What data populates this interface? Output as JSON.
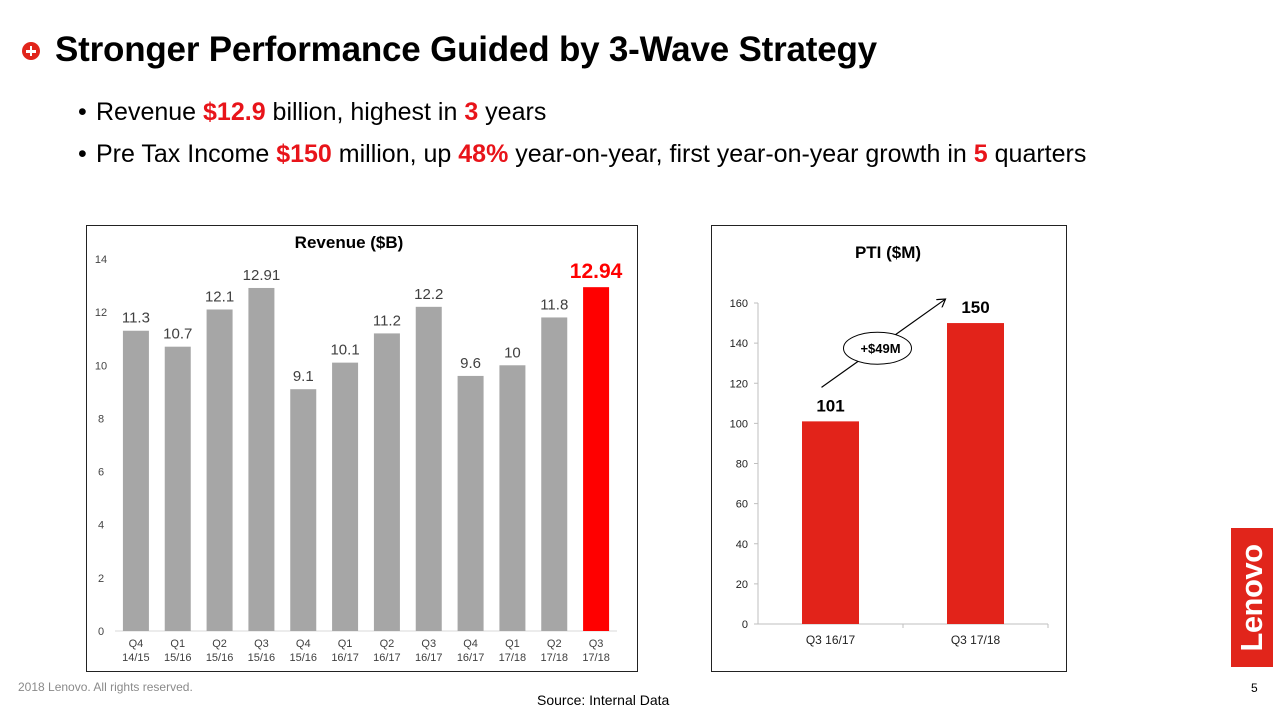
{
  "slide": {
    "title": "Stronger Performance Guided by 3-Wave Strategy",
    "bullets": [
      {
        "parts": [
          {
            "text": "Revenue ",
            "hl": false
          },
          {
            "text": "$12.9",
            "hl": true
          },
          {
            "text": " billion, highest in ",
            "hl": false
          },
          {
            "text": "3",
            "hl": true
          },
          {
            "text": " years",
            "hl": false
          }
        ]
      },
      {
        "parts": [
          {
            "text": "Pre Tax Income ",
            "hl": false
          },
          {
            "text": "$150",
            "hl": true
          },
          {
            "text": " million, up ",
            "hl": false
          },
          {
            "text": "48%",
            "hl": true
          },
          {
            "text": " year-on-year, first year-on-year growth in ",
            "hl": false
          },
          {
            "text": "5",
            "hl": true
          },
          {
            "text": " quarters",
            "hl": false
          }
        ]
      }
    ],
    "footer": "2018 Lenovo. All rights reserved.",
    "source": "Source:  Internal Data",
    "page_number": "5",
    "logo_text": "Lenovo",
    "colors": {
      "accent": "#e1251b",
      "highlight": "#ff0000",
      "bar_gray": "#a6a6a6",
      "pti_red": "#e2231a"
    }
  },
  "chart_data": [
    {
      "type": "bar",
      "title": "Revenue ($B)",
      "xlabel": "",
      "ylabel": "",
      "ylim": [
        0,
        14
      ],
      "yticks": [
        0,
        2,
        4,
        6,
        8,
        10,
        12,
        14
      ],
      "grid": false,
      "categories": [
        [
          "Q4",
          "14/15"
        ],
        [
          "Q1",
          "15/16"
        ],
        [
          "Q2",
          "15/16"
        ],
        [
          "Q3",
          "15/16"
        ],
        [
          "Q4",
          "15/16"
        ],
        [
          "Q1",
          "16/17"
        ],
        [
          "Q2",
          "16/17"
        ],
        [
          "Q3",
          "16/17"
        ],
        [
          "Q4",
          "16/17"
        ],
        [
          "Q1",
          "17/18"
        ],
        [
          "Q2",
          "17/18"
        ],
        [
          "Q3",
          "17/18"
        ]
      ],
      "values": [
        11.3,
        10.7,
        12.1,
        12.91,
        9.1,
        10.1,
        11.2,
        12.2,
        9.6,
        10,
        11.8,
        12.94
      ],
      "labels": [
        "11.3",
        "10.7",
        "12.1",
        "12.91",
        "9.1",
        "10.1",
        "11.2",
        "12.2",
        "9.6",
        "10",
        "11.8",
        "12.94"
      ],
      "highlight_index": 11
    },
    {
      "type": "bar",
      "title": "PTI ($M)",
      "xlabel": "",
      "ylabel": "",
      "ylim": [
        0,
        160
      ],
      "yticks": [
        0,
        20,
        40,
        60,
        80,
        100,
        120,
        140,
        160
      ],
      "grid": false,
      "categories": [
        "Q3 16/17",
        "Q3 17/18"
      ],
      "values": [
        101,
        150
      ],
      "labels": [
        "101",
        "150"
      ],
      "annotations": [
        {
          "text": "+$49M",
          "type": "arrow-from-first-to-second-bar"
        }
      ]
    }
  ]
}
